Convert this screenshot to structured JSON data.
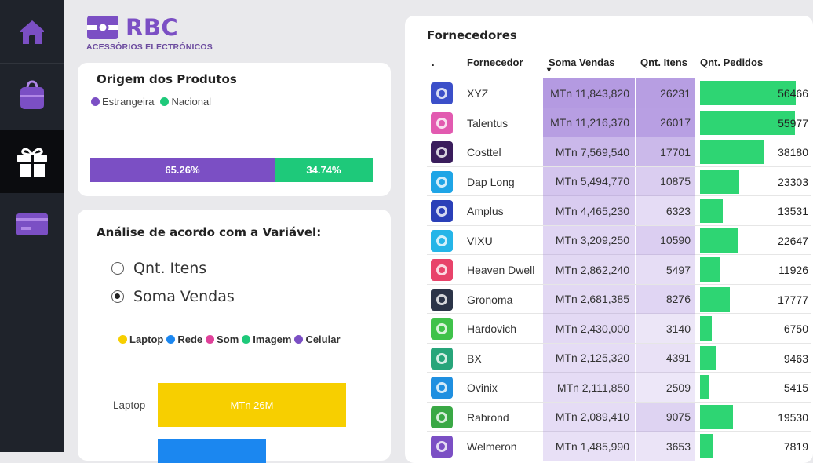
{
  "brand": {
    "name": "RBC",
    "subtitle": "ACESSÓRIOS ELECTRÓNICOS"
  },
  "sidebar": {
    "items": [
      {
        "icon": "home-icon",
        "active": false
      },
      {
        "icon": "shopping-bag-icon",
        "active": false
      },
      {
        "icon": "gift-icon",
        "active": true
      },
      {
        "icon": "credit-card-icon",
        "active": false
      }
    ]
  },
  "origem": {
    "title": "Origem dos Produtos",
    "legend": [
      {
        "label": "Estrangeira",
        "color": "#7b4fc4"
      },
      {
        "label": "Nacional",
        "color": "#1ec97a"
      }
    ],
    "segments": [
      {
        "label": "65.26%",
        "value": 65.26,
        "color": "#7b4fc4"
      },
      {
        "label": "34.74%",
        "value": 34.74,
        "color": "#1ec97a"
      }
    ]
  },
  "analise": {
    "title": "Análise de acordo com a Variável:",
    "options": [
      {
        "label": "Qnt. Itens",
        "selected": false
      },
      {
        "label": "Soma Vendas",
        "selected": true
      }
    ],
    "legend": [
      {
        "label": "Laptop",
        "color": "#f7cf00"
      },
      {
        "label": "Rede",
        "color": "#1b87f0"
      },
      {
        "label": "Som",
        "color": "#e0429a"
      },
      {
        "label": "Imagem",
        "color": "#1ec97a"
      },
      {
        "label": "Celular",
        "color": "#7b4fc4"
      }
    ],
    "bars": [
      {
        "category": "Laptop",
        "label": "MTn 26M",
        "value_millions": 26,
        "color": "#f7cf00"
      },
      {
        "category": "",
        "label": "",
        "value_millions": 15,
        "color": "#1b87f0"
      }
    ]
  },
  "fornecedores": {
    "title": "Fornecedores",
    "columns": [
      ".",
      "Fornecedor",
      "Soma Vendas",
      "Qnt. Itens",
      "Qnt. Pedidos"
    ],
    "sort_indicator": "▾",
    "rows": [
      {
        "name": "XYZ",
        "vendas": "MTn 11,843,820",
        "itens": "26231",
        "pedidos": "56466",
        "pedidos_num": 56466,
        "vendas_level": 1.0,
        "itens_level": 1.0,
        "icon": "xyz-logo-icon",
        "icon_color": "#3b4fc9"
      },
      {
        "name": "Talentus",
        "vendas": "MTn 11,216,370",
        "itens": "26017",
        "pedidos": "55977",
        "pedidos_num": 55977,
        "vendas_level": 0.95,
        "itens_level": 0.99,
        "icon": "talentus-logo-icon",
        "icon_color": "#e25ab0"
      },
      {
        "name": "Costtel",
        "vendas": "MTn 7,569,540",
        "itens": "17701",
        "pedidos": "38180",
        "pedidos_num": 38180,
        "vendas_level": 0.64,
        "itens_level": 0.67,
        "icon": "costtel-logo-icon",
        "icon_color": "#3a1d5c"
      },
      {
        "name": "Dap Long",
        "vendas": "MTn 5,494,770",
        "itens": "10875",
        "pedidos": "23303",
        "pedidos_num": 23303,
        "vendas_level": 0.46,
        "itens_level": 0.41,
        "icon": "dap-long-logo-icon",
        "icon_color": "#1fa5e6"
      },
      {
        "name": "Amplus",
        "vendas": "MTn 4,465,230",
        "itens": "6323",
        "pedidos": "13531",
        "pedidos_num": 13531,
        "vendas_level": 0.38,
        "itens_level": 0.24,
        "icon": "amplus-logo-icon",
        "icon_color": "#2a3fb8"
      },
      {
        "name": "VIXU",
        "vendas": "MTn 3,209,250",
        "itens": "10590",
        "pedidos": "22647",
        "pedidos_num": 22647,
        "vendas_level": 0.27,
        "itens_level": 0.4,
        "icon": "vixu-logo-icon",
        "icon_color": "#25b5e8"
      },
      {
        "name": "Heaven Dwell",
        "vendas": "MTn 2,862,240",
        "itens": "5497",
        "pedidos": "11926",
        "pedidos_num": 11926,
        "vendas_level": 0.24,
        "itens_level": 0.21,
        "icon": "heaven-dwell-logo-icon",
        "icon_color": "#e8436a"
      },
      {
        "name": "Gronoma",
        "vendas": "MTn 2,681,385",
        "itens": "8276",
        "pedidos": "17777",
        "pedidos_num": 17777,
        "vendas_level": 0.23,
        "itens_level": 0.32,
        "icon": "gronoma-logo-icon",
        "icon_color": "#2b3448"
      },
      {
        "name": "Hardovich",
        "vendas": "MTn 2,430,000",
        "itens": "3140",
        "pedidos": "6750",
        "pedidos_num": 6750,
        "vendas_level": 0.21,
        "itens_level": 0.12,
        "icon": "hardovich-logo-icon",
        "icon_color": "#3fc24a"
      },
      {
        "name": "BX",
        "vendas": "MTn 2,125,320",
        "itens": "4391",
        "pedidos": "9463",
        "pedidos_num": 9463,
        "vendas_level": 0.18,
        "itens_level": 0.17,
        "icon": "bx-logo-icon",
        "icon_color": "#27a57a"
      },
      {
        "name": "Ovinix",
        "vendas": "MTn 2,111,850",
        "itens": "2509",
        "pedidos": "5415",
        "pedidos_num": 5415,
        "vendas_level": 0.18,
        "itens_level": 0.1,
        "icon": "ovinix-logo-icon",
        "icon_color": "#1f8fe0"
      },
      {
        "name": "Rabrond",
        "vendas": "MTn 2,089,410",
        "itens": "9075",
        "pedidos": "19530",
        "pedidos_num": 19530,
        "vendas_level": 0.18,
        "itens_level": 0.35,
        "icon": "rabrond-logo-icon",
        "icon_color": "#3aa845"
      },
      {
        "name": "Welmeron",
        "vendas": "MTn 1,485,990",
        "itens": "3653",
        "pedidos": "7819",
        "pedidos_num": 7819,
        "vendas_level": 0.13,
        "itens_level": 0.14,
        "icon": "welmeron-logo-icon",
        "icon_color": "#7b4fc4"
      }
    ]
  }
}
